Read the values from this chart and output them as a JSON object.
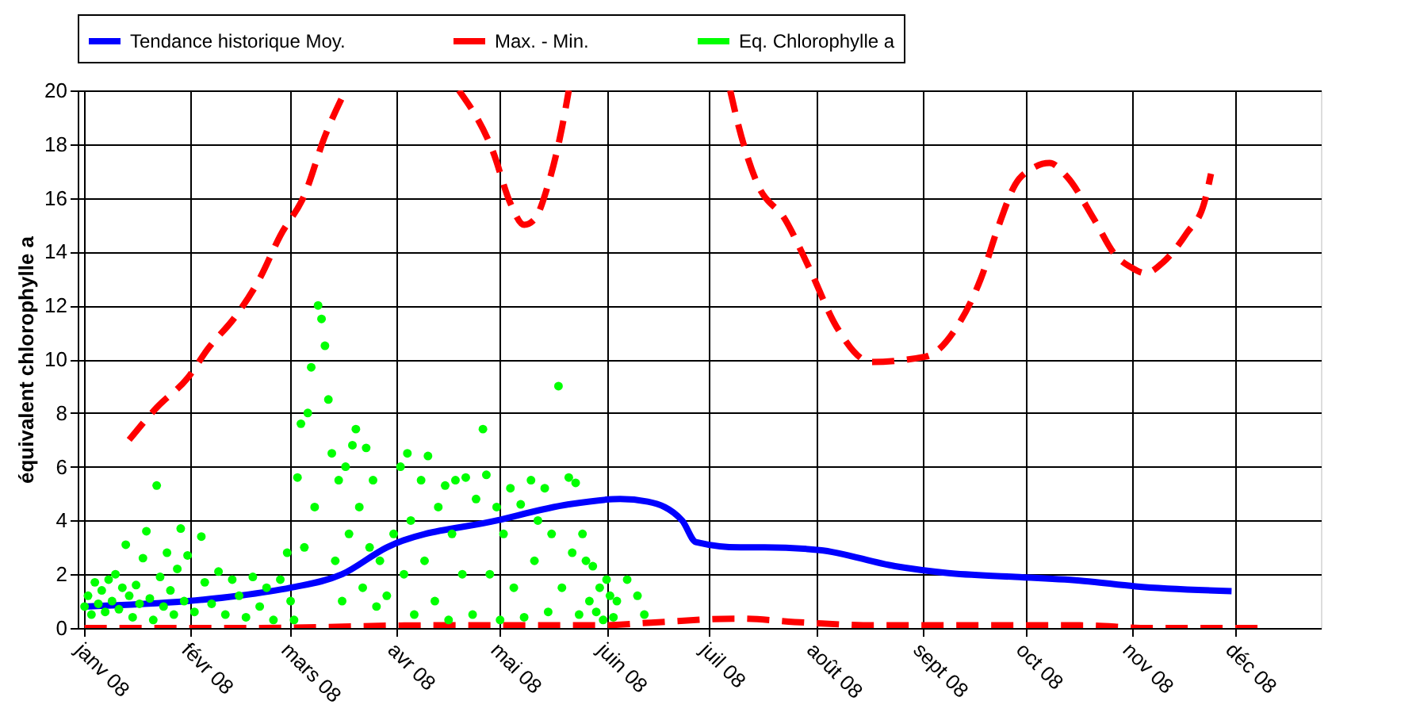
{
  "chart_data": {
    "type": "line",
    "ylabel": "équivalent chlorophylle a",
    "xlim": [
      "2007-12-30",
      "2008-12-26"
    ],
    "ylim": [
      0,
      20
    ],
    "yticks": [
      0,
      2,
      4,
      6,
      8,
      10,
      12,
      14,
      16,
      18,
      20
    ],
    "xticks": [
      {
        "value": "2008-01-01",
        "label": "janv 08"
      },
      {
        "value": "2008-02-01",
        "label": "févr 08"
      },
      {
        "value": "2008-03-01",
        "label": "mars 08"
      },
      {
        "value": "2008-04-01",
        "label": "avr 08"
      },
      {
        "value": "2008-05-01",
        "label": "mai 08"
      },
      {
        "value": "2008-06-01",
        "label": "juin 08"
      },
      {
        "value": "2008-07-01",
        "label": "juil 08"
      },
      {
        "value": "2008-08-01",
        "label": "août 08"
      },
      {
        "value": "2008-09-01",
        "label": "sept 08"
      },
      {
        "value": "2008-10-01",
        "label": "oct 08"
      },
      {
        "value": "2008-11-01",
        "label": "nov 08"
      },
      {
        "value": "2008-12-01",
        "label": "déc 08"
      }
    ],
    "grid": true,
    "legend": "top",
    "series": [
      {
        "name": "Tendance historique Moy.",
        "line_style": "solid",
        "color": "#0000ff",
        "x": [
          "2008-01-01",
          "2008-01-31",
          "2008-02-15",
          "2008-03-01",
          "2008-03-16",
          "2008-03-29",
          "2008-04-30",
          "2008-05-21",
          "2008-06-05",
          "2008-06-13",
          "2008-06-23",
          "2008-06-27",
          "2008-07-10",
          "2008-07-17",
          "2008-08-02",
          "2008-08-24",
          "2008-09-08",
          "2008-09-28",
          "2008-10-18",
          "2008-11-02",
          "2008-11-30"
        ],
        "values": [
          0.8,
          1.0,
          1.2,
          1.5,
          2.0,
          3.0,
          4.0,
          4.6,
          4.8,
          4.7,
          4.0,
          3.2,
          3.0,
          3.0,
          2.9,
          2.3,
          2.05,
          1.9,
          1.75,
          1.55,
          1.37
        ]
      },
      {
        "name": "Max. - Min.",
        "line_style": "dashed",
        "color": "#ff0000",
        "x": [
          "2008-01-14",
          "2008-01-22",
          "2008-01-31",
          "2008-02-06",
          "2008-02-14",
          "2008-02-21",
          "2008-02-27",
          "2008-03-05",
          "2008-03-11",
          "2008-03-17",
          "2008-04-01",
          "2008-04-19",
          "2008-04-29",
          "2008-05-04",
          "2008-05-08",
          "2008-05-11",
          "2008-05-15",
          "2008-05-19",
          "2008-05-21",
          "2008-06-15",
          "2008-07-07",
          "2008-07-09",
          "2008-07-15",
          "2008-07-23",
          "2008-07-30",
          "2008-08-07",
          "2008-08-17",
          "2008-09-02",
          "2008-09-11",
          "2008-09-18",
          "2008-09-23",
          "2008-09-28",
          "2008-10-03",
          "2008-10-08",
          "2008-10-13",
          "2008-10-21",
          "2008-10-27",
          "2008-11-01",
          "2008-11-05",
          "2008-11-10",
          "2008-11-17",
          "2008-11-22",
          "2008-11-24"
        ],
        "values": [
          7.0,
          8.2,
          9.3,
          10.4,
          11.6,
          13.0,
          14.6,
          16.1,
          18.3,
          20,
          null,
          20,
          17.7,
          15.8,
          15.0,
          15.2,
          16.5,
          18.6,
          20,
          null,
          20,
          18.9,
          16.5,
          15.2,
          13.4,
          11.2,
          9.9,
          10.1,
          11.2,
          13.0,
          14.9,
          16.5,
          17.1,
          17.3,
          16.8,
          15.2,
          13.9,
          13.4,
          13.2,
          13.6,
          14.7,
          15.8,
          16.9
        ]
      },
      {
        "line_style": "dashed",
        "color": "#ff0000",
        "x": [
          "2008-01-01",
          "2008-02-20",
          "2008-04-10",
          "2008-05-30",
          "2008-06-14",
          "2008-07-09",
          "2008-07-29",
          "2008-08-18",
          "2008-09-17",
          "2008-10-17",
          "2008-11-06",
          "2008-11-26",
          "2008-12-11"
        ],
        "values": [
          0,
          0,
          0.1,
          0.1,
          0.2,
          0.35,
          0.2,
          0.1,
          0.1,
          0.1,
          0,
          0,
          0
        ]
      },
      {
        "name": "Eq. Chlorophylle a",
        "type": "scatter",
        "marker": "circle",
        "color": "#00ff00",
        "x": [
          "2008-01-01",
          "2008-01-02",
          "2008-01-03",
          "2008-01-04",
          "2008-01-05",
          "2008-01-06",
          "2008-01-07",
          "2008-01-08",
          "2008-01-09",
          "2008-01-10",
          "2008-01-11",
          "2008-01-12",
          "2008-01-13",
          "2008-01-14",
          "2008-01-15",
          "2008-01-16",
          "2008-01-17",
          "2008-01-18",
          "2008-01-19",
          "2008-01-20",
          "2008-01-21",
          "2008-01-22",
          "2008-01-23",
          "2008-01-24",
          "2008-01-25",
          "2008-01-26",
          "2008-01-27",
          "2008-01-28",
          "2008-01-29",
          "2008-01-30",
          "2008-01-31",
          "2008-02-02",
          "2008-02-04",
          "2008-02-05",
          "2008-02-07",
          "2008-02-09",
          "2008-02-11",
          "2008-02-13",
          "2008-02-15",
          "2008-02-17",
          "2008-02-19",
          "2008-02-21",
          "2008-02-23",
          "2008-02-25",
          "2008-02-27",
          "2008-02-29",
          "2008-03-01",
          "2008-03-02",
          "2008-03-03",
          "2008-03-04",
          "2008-03-05",
          "2008-03-06",
          "2008-03-07",
          "2008-03-08",
          "2008-03-09",
          "2008-03-10",
          "2008-03-11",
          "2008-03-12",
          "2008-03-13",
          "2008-03-14",
          "2008-03-15",
          "2008-03-16",
          "2008-03-17",
          "2008-03-18",
          "2008-03-19",
          "2008-03-20",
          "2008-03-21",
          "2008-03-22",
          "2008-03-23",
          "2008-03-24",
          "2008-03-25",
          "2008-03-26",
          "2008-03-27",
          "2008-03-29",
          "2008-03-31",
          "2008-04-02",
          "2008-04-03",
          "2008-04-04",
          "2008-04-05",
          "2008-04-06",
          "2008-04-08",
          "2008-04-09",
          "2008-04-10",
          "2008-04-12",
          "2008-04-13",
          "2008-04-15",
          "2008-04-16",
          "2008-04-17",
          "2008-04-18",
          "2008-04-20",
          "2008-04-21",
          "2008-04-23",
          "2008-04-24",
          "2008-04-26",
          "2008-04-27",
          "2008-04-28",
          "2008-04-30",
          "2008-05-01",
          "2008-05-02",
          "2008-05-04",
          "2008-05-05",
          "2008-05-07",
          "2008-05-08",
          "2008-05-10",
          "2008-05-11",
          "2008-05-12",
          "2008-05-14",
          "2008-05-15",
          "2008-05-16",
          "2008-05-18",
          "2008-05-19",
          "2008-05-21",
          "2008-05-22",
          "2008-05-23",
          "2008-05-24",
          "2008-05-25",
          "2008-05-26",
          "2008-05-27",
          "2008-05-28",
          "2008-05-29",
          "2008-05-30",
          "2008-05-31",
          "2008-06-01",
          "2008-06-02",
          "2008-06-03",
          "2008-06-04",
          "2008-06-07",
          "2008-06-10",
          "2008-06-12"
        ],
        "values": [
          0.8,
          1.2,
          0.5,
          1.7,
          0.9,
          1.4,
          0.6,
          1.8,
          1.0,
          2.0,
          0.7,
          1.5,
          3.1,
          1.2,
          0.4,
          1.6,
          0.9,
          2.6,
          3.6,
          1.1,
          0.3,
          5.3,
          1.9,
          0.8,
          2.8,
          1.4,
          0.5,
          2.2,
          3.7,
          1.0,
          2.7,
          0.6,
          3.4,
          1.7,
          0.9,
          2.1,
          0.5,
          1.8,
          1.2,
          0.4,
          1.9,
          0.8,
          1.5,
          0.3,
          1.8,
          2.8,
          1.0,
          0.3,
          5.6,
          7.6,
          3.0,
          8.0,
          9.7,
          4.5,
          12.0,
          11.5,
          10.5,
          8.5,
          6.5,
          2.5,
          5.5,
          1.0,
          6.0,
          3.5,
          6.8,
          7.4,
          4.5,
          1.5,
          6.7,
          3.0,
          5.5,
          0.8,
          2.5,
          1.2,
          3.5,
          6.0,
          2.0,
          6.5,
          4.0,
          0.5,
          5.5,
          2.5,
          6.4,
          1.0,
          4.5,
          5.3,
          0.3,
          3.5,
          5.5,
          2.0,
          5.6,
          0.5,
          4.8,
          7.4,
          5.7,
          2.0,
          4.5,
          0.3,
          3.5,
          5.2,
          1.5,
          4.6,
          0.4,
          5.5,
          2.5,
          4.0,
          5.2,
          0.6,
          3.5,
          9.0,
          1.5,
          5.6,
          2.8,
          5.4,
          0.5,
          3.5,
          2.5,
          1.0,
          2.3,
          0.6,
          1.5,
          0.3,
          1.8,
          1.2,
          0.4,
          1.0,
          1.8,
          1.2,
          0.5
        ]
      }
    ]
  }
}
